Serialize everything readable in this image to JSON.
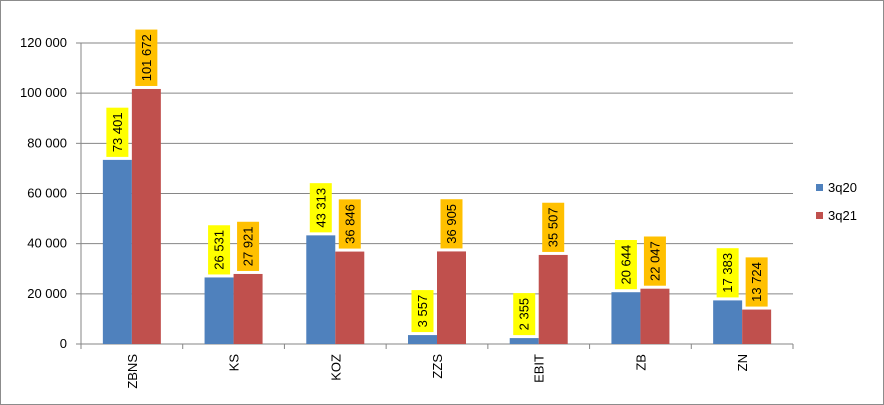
{
  "chart_data": {
    "type": "bar",
    "categories": [
      "ZBNS",
      "KS",
      "KOZ",
      "ZZS",
      "EBIT",
      "ZB",
      "ZN"
    ],
    "series": [
      {
        "name": "3q20",
        "color": "#4f81bd",
        "label_bg": "#ffff00",
        "values": [
          73401,
          26531,
          43313,
          3557,
          2355,
          20644,
          17383
        ],
        "labels": [
          "73 401",
          "26 531",
          "43 313",
          "3 557",
          "2 355",
          "20 644",
          "17 383"
        ]
      },
      {
        "name": "3q21",
        "color": "#c0504d",
        "label_bg": "#ffc000",
        "values": [
          101672,
          27921,
          36846,
          36905,
          35507,
          22047,
          13724
        ],
        "labels": [
          "101 672",
          "27 921",
          "36 846",
          "36 905",
          "35 507",
          "22 047",
          "13 724"
        ]
      }
    ],
    "y_ticks": [
      "0",
      "20 000",
      "40 000",
      "60 000",
      "80 000",
      "100 000",
      "120 000"
    ],
    "y_tick_values": [
      0,
      20000,
      40000,
      60000,
      80000,
      100000,
      120000
    ],
    "ylim": [
      0,
      120000
    ],
    "grid": true,
    "legend_position": "right",
    "gridline_color": "#868686",
    "axis_color": "#868686"
  }
}
